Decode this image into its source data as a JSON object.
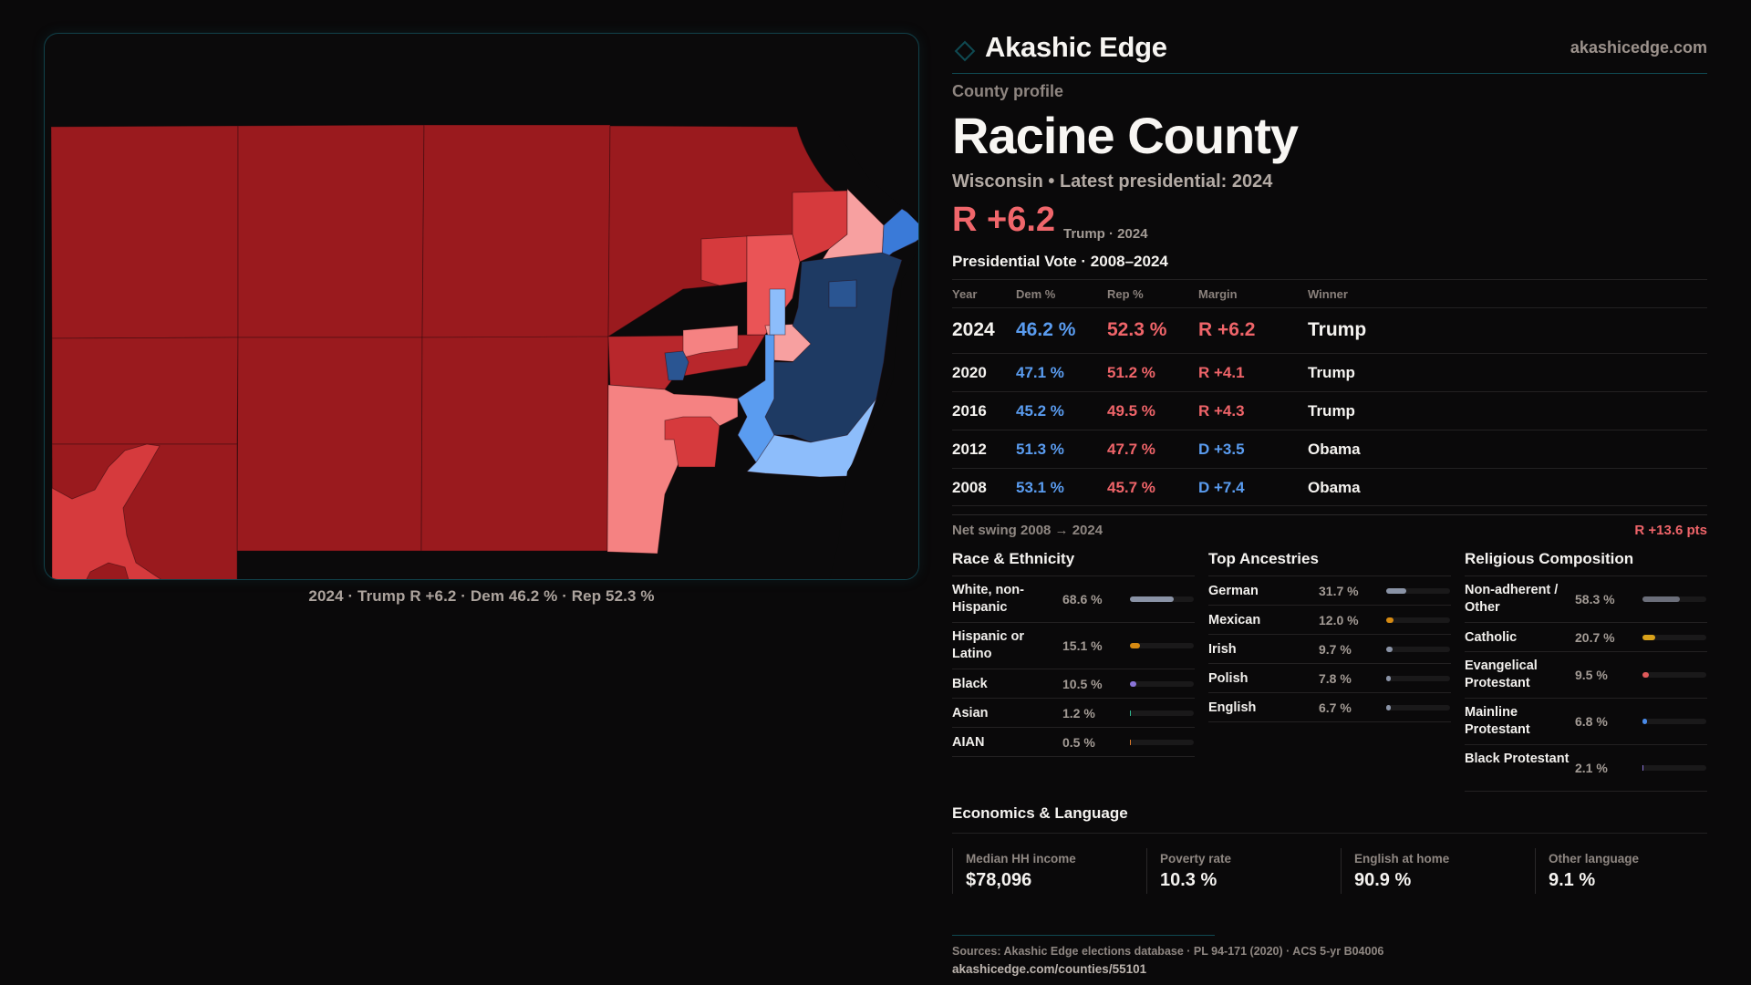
{
  "brand": {
    "name": "Akashic Edge",
    "logo_icon": "diamond-icon",
    "url": "akashicedge.com",
    "accent": "#0f4a52"
  },
  "header": {
    "kicker": "County profile",
    "title": "Racine County",
    "subtitle": "Wisconsin • Latest presidential: 2024",
    "margin": "R +6.2",
    "margin_detail": "Trump · 2024"
  },
  "map": {
    "caption": "2024 · Trump  R +6.2 · Dem 46.2 % · Rep 52.3 %",
    "legend_colors": {
      "r_strong": "#9a1a1e",
      "r_likely": "#b8272c",
      "r_lean": "#d63a3d",
      "r_mid": "#ea5456",
      "r_tilt": "#f58282",
      "r_slight": "#f7a0a0",
      "d_slight": "#8dbdfb",
      "d_tilt": "#5a9cf0",
      "d_lean": "#3a7ad8",
      "d_mid": "#2a5592",
      "d_strong": "#1e3a63"
    }
  },
  "presidential": {
    "heading": "Presidential Vote · 2008–2024",
    "columns": [
      "Year",
      "Dem %",
      "Rep %",
      "Margin",
      "Winner"
    ],
    "rows": [
      {
        "year": "2024",
        "dem": "46.2 %",
        "rep": "52.3 %",
        "margin": "R +6.2",
        "party": "R",
        "winner": "Trump"
      },
      {
        "year": "2020",
        "dem": "47.1 %",
        "rep": "51.2 %",
        "margin": "R +4.1",
        "party": "R",
        "winner": "Trump"
      },
      {
        "year": "2016",
        "dem": "45.2 %",
        "rep": "49.5 %",
        "margin": "R +4.3",
        "party": "R",
        "winner": "Trump"
      },
      {
        "year": "2012",
        "dem": "51.3 %",
        "rep": "47.7 %",
        "margin": "D +3.5",
        "party": "D",
        "winner": "Obama"
      },
      {
        "year": "2008",
        "dem": "53.1 %",
        "rep": "45.7 %",
        "margin": "D +7.4",
        "party": "D",
        "winner": "Obama"
      }
    ],
    "swing_label": "Net swing 2008 → 2024",
    "swing_value": "R +13.6 pts"
  },
  "race": {
    "heading": "Race & Ethnicity",
    "items": [
      {
        "label": "White, non-Hispanic",
        "value": "68.6 %",
        "pct": 68.6,
        "color": "#8a93a6",
        "lines": 2
      },
      {
        "label": "Hispanic or Latino",
        "value": "15.1 %",
        "pct": 15.1,
        "color": "#d68a12",
        "lines": 2
      },
      {
        "label": "Black",
        "value": "10.5 %",
        "pct": 10.5,
        "color": "#8a74d8",
        "lines": 1
      },
      {
        "label": "Asian",
        "value": "1.2 %",
        "pct": 1.2,
        "color": "#2fb58e",
        "lines": 1
      },
      {
        "label": "AIAN",
        "value": "0.5 %",
        "pct": 0.5,
        "color": "#d9782a",
        "lines": 1
      }
    ]
  },
  "ancestry": {
    "heading": "Top Ancestries",
    "items": [
      {
        "label": "German",
        "value": "31.7 %",
        "pct": 31.7,
        "color": "#8a93a6",
        "lines": 1
      },
      {
        "label": "Mexican",
        "value": "12.0 %",
        "pct": 12.0,
        "color": "#d68a12",
        "lines": 1
      },
      {
        "label": "Irish",
        "value": "9.7 %",
        "pct": 9.7,
        "color": "#8a93a6",
        "lines": 1
      },
      {
        "label": "Polish",
        "value": "7.8 %",
        "pct": 7.8,
        "color": "#8a93a6",
        "lines": 1
      },
      {
        "label": "English",
        "value": "6.7 %",
        "pct": 6.7,
        "color": "#8a93a6",
        "lines": 1
      }
    ]
  },
  "religion": {
    "heading": "Religious Composition",
    "items": [
      {
        "label": "Non-adherent / Other",
        "value": "58.3 %",
        "pct": 58.3,
        "color": "#6b6e7a",
        "lines": 2
      },
      {
        "label": "Catholic",
        "value": "20.7 %",
        "pct": 20.7,
        "color": "#d9a21a",
        "lines": 1
      },
      {
        "label": "Evangelical Protestant",
        "value": "9.5 %",
        "pct": 9.5,
        "color": "#e05a5a",
        "lines": 2
      },
      {
        "label": "Mainline Protestant",
        "value": "6.8 %",
        "pct": 6.8,
        "color": "#4a8ae8",
        "lines": 2
      },
      {
        "label": "Black Protestant",
        "value": "2.1 %",
        "pct": 2.1,
        "color": "#8a74d8",
        "lines": 2
      }
    ]
  },
  "economics": {
    "heading": "Economics & Language",
    "items": [
      {
        "label": "Median HH income",
        "value": "$78,096"
      },
      {
        "label": "Poverty rate",
        "value": "10.3 %"
      },
      {
        "label": "English at home",
        "value": "90.9 %"
      },
      {
        "label": "Other language",
        "value": "9.1 %"
      }
    ]
  },
  "footer": {
    "sources": "Sources: Akashic Edge elections database · PL 94-171 (2020) · ACS 5-yr B04006",
    "url": "akashicedge.com/counties/55101"
  }
}
